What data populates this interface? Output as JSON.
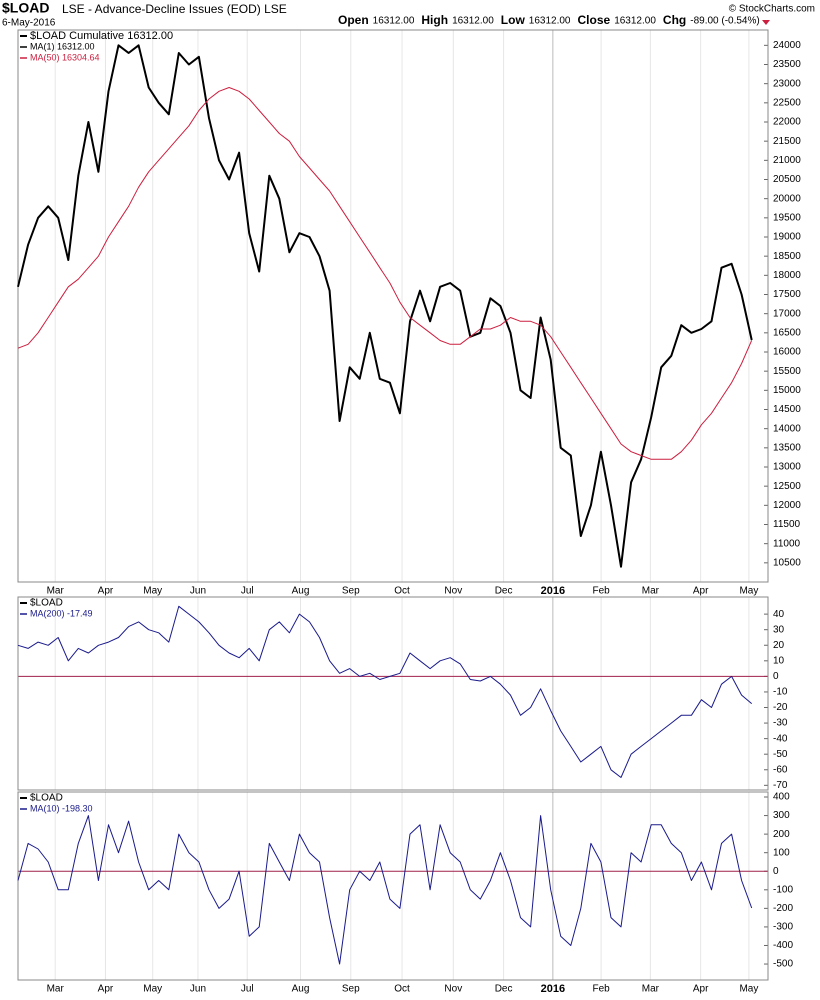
{
  "header": {
    "symbol": "$LOAD",
    "description": "LSE - Advance-Decline Issues (EOD) LSE",
    "date": "6-May-2016",
    "credit": "© StockCharts.com",
    "quote": [
      {
        "label": "Open",
        "value": "16312.00"
      },
      {
        "label": "High",
        "value": "16312.00"
      },
      {
        "label": "Low",
        "value": "16312.00"
      },
      {
        "label": "Close",
        "value": "16312.00"
      },
      {
        "label": "Chg",
        "value": "-89.00 (-0.54%)"
      }
    ]
  },
  "xaxis": {
    "xlim": [
      0,
      74.6
    ],
    "xticks": [
      {
        "value": 3.7,
        "label": "Mar"
      },
      {
        "value": 8.7,
        "label": "Apr"
      },
      {
        "value": 13.4,
        "label": "May"
      },
      {
        "value": 17.9,
        "label": "Jun"
      },
      {
        "value": 22.8,
        "label": "Jul"
      },
      {
        "value": 28.1,
        "label": "Aug"
      },
      {
        "value": 33.1,
        "label": "Sep"
      },
      {
        "value": 38.2,
        "label": "Oct"
      },
      {
        "value": 43.3,
        "label": "Nov"
      },
      {
        "value": 48.3,
        "label": "Dec"
      },
      {
        "value": 53.2,
        "label": "2016",
        "bold": true
      },
      {
        "value": 58,
        "label": "Feb"
      },
      {
        "value": 62.9,
        "label": "Mar"
      },
      {
        "value": 67.9,
        "label": "Apr"
      },
      {
        "value": 72.7,
        "label": "May"
      }
    ]
  },
  "chart_data": [
    {
      "type": "line",
      "title": "$LOAD Cumulative 16312.00",
      "show_x_labels": true,
      "ylim": [
        10000,
        24400
      ],
      "yticks": [
        10500,
        11000,
        11500,
        12000,
        12500,
        13000,
        13500,
        14000,
        14500,
        15000,
        15500,
        16000,
        16500,
        17000,
        17500,
        18000,
        18500,
        19000,
        19500,
        20000,
        20500,
        21000,
        21500,
        22000,
        22500,
        23000,
        23500,
        24000
      ],
      "series": [
        {
          "name": "MA(1) 16312.00",
          "color": "#000000",
          "width": 2,
          "values": [
            17700,
            18800,
            19500,
            19800,
            19500,
            18400,
            20600,
            22000,
            20700,
            22800,
            24000,
            23800,
            24000,
            22900,
            22500,
            22200,
            23800,
            23500,
            23700,
            22100,
            21000,
            20500,
            21200,
            19100,
            18100,
            20600,
            20000,
            18600,
            19100,
            19000,
            18500,
            17600,
            14200,
            15600,
            15300,
            16500,
            15300,
            15200,
            14400,
            16800,
            17600,
            16800,
            17700,
            17800,
            17600,
            16400,
            16500,
            17400,
            17200,
            16500,
            15000,
            14800,
            16900,
            15800,
            13500,
            13300,
            11200,
            12000,
            13400,
            12000,
            10400,
            12600,
            13200,
            14300,
            15600,
            15900,
            16700,
            16500,
            16600,
            16800,
            18200,
            18300,
            17500,
            16312
          ]
        },
        {
          "name": "MA(50) 16304.64",
          "color": "#cc1f3f",
          "width": 1,
          "values": [
            16100,
            16200,
            16500,
            16900,
            17300,
            17700,
            17900,
            18200,
            18500,
            19000,
            19400,
            19800,
            20300,
            20700,
            21000,
            21300,
            21600,
            21900,
            22300,
            22600,
            22800,
            22900,
            22800,
            22600,
            22300,
            22000,
            21700,
            21500,
            21100,
            20800,
            20500,
            20200,
            19800,
            19400,
            19000,
            18600,
            18200,
            17800,
            17300,
            16900,
            16700,
            16500,
            16300,
            16200,
            16200,
            16400,
            16600,
            16600,
            16700,
            16900,
            16800,
            16800,
            16700,
            16400,
            16000,
            15600,
            15200,
            14800,
            14400,
            14000,
            13600,
            13400,
            13300,
            13200,
            13200,
            13200,
            13400,
            13700,
            14100,
            14400,
            14800,
            15200,
            15700,
            16304.64
          ]
        }
      ]
    },
    {
      "type": "line",
      "title": "$LOAD",
      "show_x_labels": false,
      "ylim": [
        -73,
        51
      ],
      "reference_line": 0,
      "reference_color": "#a0204a",
      "yticks": [
        -70,
        -60,
        -50,
        -40,
        -30,
        -20,
        -10,
        0,
        10,
        20,
        30,
        40
      ],
      "series": [
        {
          "name": "MA(200) -17.49",
          "color": "#1a1a8c",
          "width": 1,
          "values": [
            20,
            18,
            22,
            20,
            25,
            10,
            18,
            15,
            20,
            22,
            25,
            32,
            35,
            30,
            28,
            22,
            45,
            40,
            35,
            28,
            20,
            15,
            12,
            18,
            10,
            30,
            35,
            28,
            40,
            35,
            25,
            10,
            2,
            5,
            0,
            2,
            -2,
            0,
            2,
            15,
            10,
            5,
            10,
            12,
            8,
            -2,
            -3,
            0,
            -5,
            -12,
            -25,
            -20,
            -8,
            -22,
            -35,
            -45,
            -55,
            -50,
            -45,
            -60,
            -65,
            -50,
            -45,
            -40,
            -35,
            -30,
            -25,
            -25,
            -15,
            -20,
            -5,
            0,
            -12,
            -17.49
          ]
        }
      ]
    },
    {
      "type": "line",
      "title": "$LOAD",
      "show_x_labels": true,
      "ylim": [
        -586,
        427
      ],
      "reference_line": 0,
      "reference_color": "#a0204a",
      "yticks": [
        -500,
        -400,
        -300,
        -200,
        -100,
        0,
        100,
        200,
        300,
        400
      ],
      "series": [
        {
          "name": "MA(10) -198.30",
          "color": "#1a1a8c",
          "width": 1,
          "values": [
            -50,
            150,
            120,
            50,
            -100,
            -100,
            150,
            300,
            -50,
            250,
            100,
            270,
            50,
            -100,
            -50,
            -100,
            200,
            100,
            50,
            -100,
            -200,
            -150,
            0,
            -350,
            -300,
            150,
            50,
            -50,
            200,
            100,
            50,
            -250,
            -500,
            -100,
            0,
            -50,
            50,
            -150,
            -200,
            200,
            250,
            -100,
            250,
            100,
            50,
            -100,
            -150,
            -50,
            100,
            -50,
            -250,
            -300,
            300,
            -100,
            -350,
            -400,
            -200,
            150,
            50,
            -250,
            -300,
            100,
            50,
            250,
            250,
            150,
            100,
            -50,
            50,
            -100,
            150,
            200,
            -50,
            -198.3
          ]
        }
      ]
    }
  ]
}
